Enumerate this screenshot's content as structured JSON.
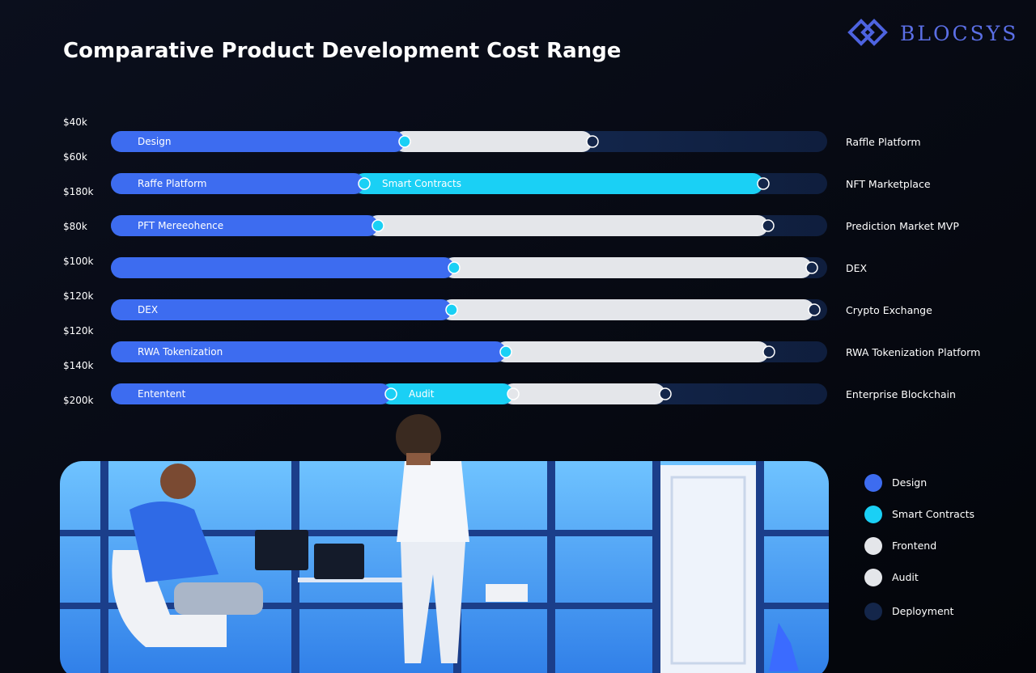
{
  "header": {
    "title": "Comparative Product Development Cost Range",
    "logo": "BLOCSYS"
  },
  "axis_labels": [
    "$40k",
    "$60k",
    "$180k",
    "$80k",
    "$100k",
    "$120k",
    "$120k",
    "$140k",
    "$200k"
  ],
  "rows": [
    {
      "name": "Raffle Platform",
      "tags": [
        "Design"
      ]
    },
    {
      "name": "NFT Marketplace",
      "tags": [
        "Raffe Platform",
        "Smart Contracts"
      ]
    },
    {
      "name": "Prediction Market MVP",
      "tags": [
        "PFT Mereeohence"
      ]
    },
    {
      "name": "DEX",
      "tags": []
    },
    {
      "name": "Crypto Exchange",
      "tags": [
        "DEX"
      ]
    },
    {
      "name": "RWA Tokenization Platform",
      "tags": [
        "RWA Tokenization"
      ]
    },
    {
      "name": "Enterprise Blockchain",
      "tags": [
        "Ententent",
        "Audit"
      ]
    }
  ],
  "legend": [
    {
      "name": "Design",
      "color": "#3d6cf0"
    },
    {
      "name": "Smart Contracts",
      "color": "#1ad0f5"
    },
    {
      "name": "Frontend",
      "color": "#e4e6ea"
    },
    {
      "name": "Audit",
      "color": "#e4e6ea"
    },
    {
      "name": "Deployment",
      "color": "#14264a"
    }
  ]
}
